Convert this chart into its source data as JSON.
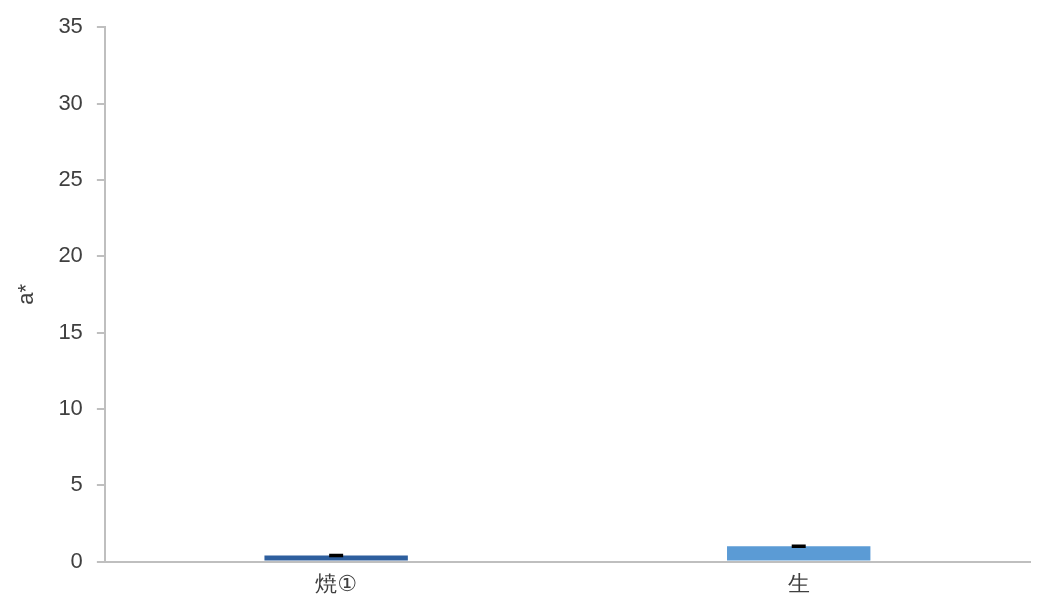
{
  "chart_data": {
    "type": "bar",
    "ylabel": "a*",
    "categories": [
      "焼①",
      "生"
    ],
    "values": [
      0.4,
      1.0
    ],
    "colors": [
      "#2e5f9e",
      "#5b9bd5"
    ],
    "errors": [
      0.05,
      0.05
    ],
    "ylim": [
      0,
      35
    ],
    "yticks": [
      0,
      5,
      10,
      15,
      20,
      25,
      30,
      35
    ],
    "grid": false,
    "legend": false
  }
}
